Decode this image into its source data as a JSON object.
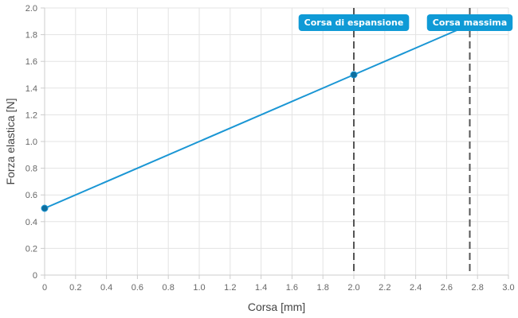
{
  "chart_data": {
    "type": "line",
    "xlabel": "Corsa [mm]",
    "ylabel": "Forza elastica [N]",
    "xlim": [
      0,
      3.0
    ],
    "ylim": [
      0,
      2.0
    ],
    "x_ticks": [
      "0",
      "0.2",
      "0.4",
      "0.6",
      "0.8",
      "1.0",
      "1.2",
      "1.4",
      "1.6",
      "1.8",
      "2.0",
      "2.2",
      "2.4",
      "2.6",
      "2.8",
      "3.0"
    ],
    "y_ticks": [
      "0",
      "0.2",
      "0.4",
      "0.6",
      "0.8",
      "1.0",
      "1.2",
      "1.4",
      "1.6",
      "1.8",
      "2.0"
    ],
    "grid": true,
    "series": [
      {
        "color": "#1a96d4",
        "points": [
          {
            "x": 0,
            "y": 0.5,
            "marker": true
          },
          {
            "x": 2.0,
            "y": 1.5,
            "marker": true
          },
          {
            "x": 2.75,
            "y": 1.875,
            "marker": false
          }
        ]
      }
    ],
    "annotations": [
      {
        "label": "Corsa di espansione",
        "x": 2.0,
        "color": "#0f9ad6"
      },
      {
        "label": "Corsa massima",
        "x": 2.75,
        "color": "#0f9ad6"
      }
    ]
  }
}
